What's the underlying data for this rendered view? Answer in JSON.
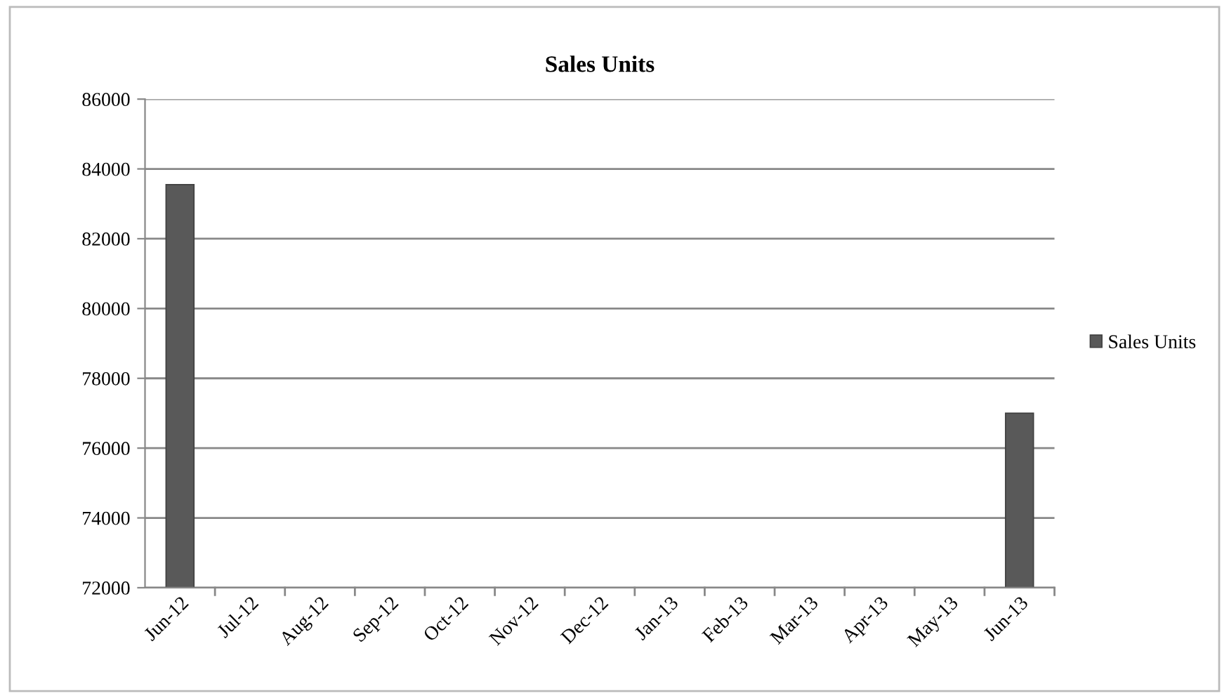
{
  "chart_data": {
    "type": "bar",
    "title": "Sales Units",
    "categories": [
      "Jun-12",
      "Jul-12",
      "Aug-12",
      "Sep-12",
      "Oct-12",
      "Nov-12",
      "Dec-12",
      "Jan-13",
      "Feb-13",
      "Mar-13",
      "Apr-13",
      "May-13",
      "Jun-13"
    ],
    "series": [
      {
        "name": "Sales Units",
        "color": "#595959",
        "values": [
          83550,
          null,
          null,
          null,
          null,
          null,
          null,
          null,
          null,
          null,
          null,
          null,
          77000
        ]
      }
    ],
    "ylim": [
      72000,
      86000
    ],
    "yticks": [
      72000,
      74000,
      76000,
      78000,
      80000,
      82000,
      84000,
      86000
    ],
    "grid": "y",
    "legend": "right"
  }
}
